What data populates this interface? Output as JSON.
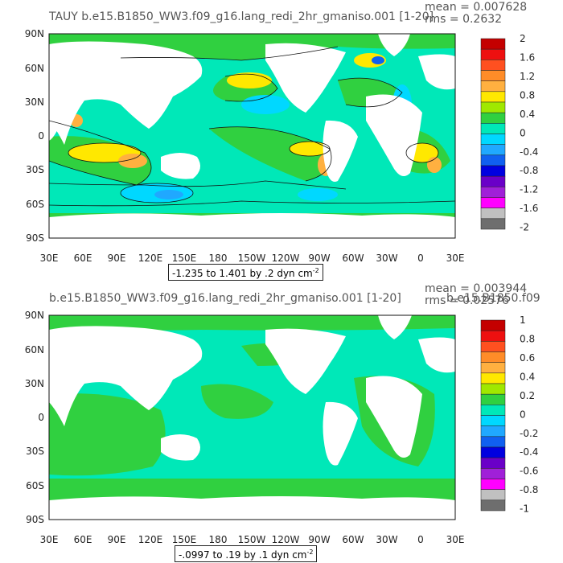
{
  "panels": [
    {
      "id": "top",
      "title": "TAUY b.e15.B1850_WW3.f09_g16.lang_redi_2hr_gmaniso.001 [1-20]",
      "stats": {
        "mean": "mean = 0.007628",
        "rms": "rms = 0.2632"
      },
      "note_text": "-1.235 to 1.401 by .2 dyn cm",
      "note_exp": "-2",
      "colorbar": {
        "labels": [
          "2",
          "1.6",
          "1.2",
          "0.8",
          "0.4",
          "0",
          "-0.4",
          "-0.8",
          "-1.2",
          "-1.6",
          "-2"
        ],
        "colors": [
          "#c40000",
          "#ee1010",
          "#ff5020",
          "#ff8c28",
          "#ffb040",
          "#ffe800",
          "#a0e800",
          "#30d040",
          "#00e8b8",
          "#00d8ff",
          "#20a8ff",
          "#1060f0",
          "#0000e0",
          "#6a00c8",
          "#a020d8",
          "#ff00ff",
          "#c0c0c0",
          "#6e6e6e"
        ]
      },
      "chart_data": {
        "type": "contour-map",
        "variable": "TAUY",
        "units": "dyn cm-2",
        "range": [
          -1.235,
          1.401
        ],
        "contour_interval": 0.2,
        "mean": 0.007628,
        "rms": 0.2632,
        "xlim": [
          "30E",
          "30E"
        ],
        "ylim": [
          "90S",
          "90N"
        ]
      }
    },
    {
      "id": "bottom",
      "title": "b.e15.B1850_WW3.f09_g16.lang_redi_2hr_gmaniso.001 [1-20]",
      "title_overlap": "b.e15.B1850.f09",
      "stats": {
        "mean": "mean = 0.003944",
        "rms": "rms = 0.02576"
      },
      "note_text": "-.0997 to .19 by .1 dyn cm",
      "note_exp": "-2",
      "colorbar": {
        "labels": [
          "1",
          "0.8",
          "0.6",
          "0.4",
          "0.2",
          "0",
          "-0.2",
          "-0.4",
          "-0.6",
          "-0.8",
          "-1"
        ],
        "colors": [
          "#c40000",
          "#ee1010",
          "#ff5020",
          "#ff8c28",
          "#ffb040",
          "#ffe800",
          "#a0e800",
          "#30d040",
          "#00e8b8",
          "#00d8ff",
          "#20a8ff",
          "#1060f0",
          "#0000e0",
          "#6a00c8",
          "#a020d8",
          "#ff00ff",
          "#c0c0c0",
          "#6e6e6e"
        ]
      },
      "chart_data": {
        "type": "contour-map",
        "units": "dyn cm-2",
        "range": [
          -0.0997,
          0.19
        ],
        "contour_interval": 0.1,
        "mean": 0.003944,
        "rms": 0.02576,
        "xlim": [
          "30E",
          "30E"
        ],
        "ylim": [
          "90S",
          "90N"
        ]
      }
    }
  ],
  "x_ticks": [
    "30E",
    "60E",
    "90E",
    "120E",
    "150E",
    "180",
    "150W",
    "120W",
    "90W",
    "60W",
    "30W",
    "0",
    "30E"
  ],
  "y_ticks": [
    "90N",
    "60N",
    "30N",
    "0",
    "30S",
    "60S",
    "90S"
  ],
  "palette": {
    "ocean_main": "#30d040",
    "ocean_neg": "#00e8b8",
    "land": "#ffffff"
  }
}
